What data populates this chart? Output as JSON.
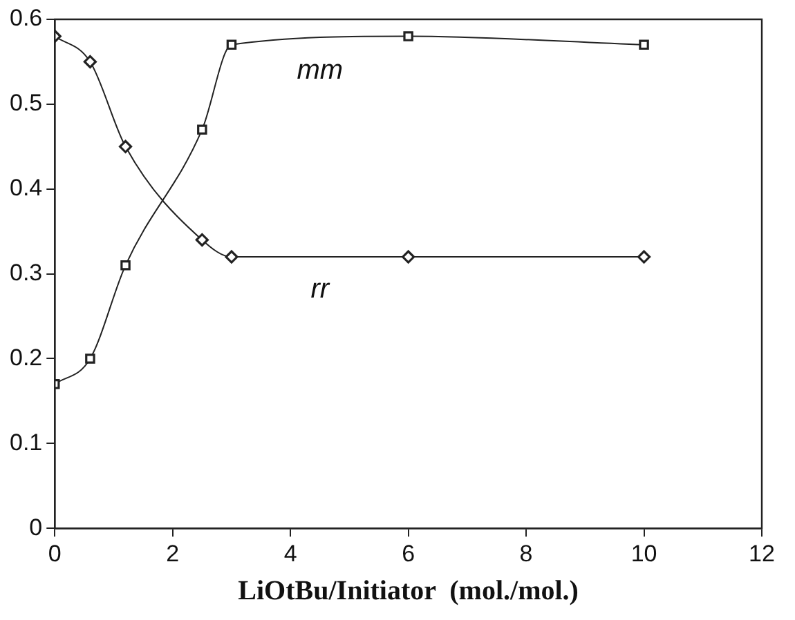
{
  "chart_data": {
    "type": "line",
    "xlabel": "LiOtBu/Initiator  (mol./mol.)",
    "x": [
      0,
      0.6,
      1.2,
      2.5,
      3,
      6,
      10
    ],
    "xlim": [
      0,
      12
    ],
    "xticks": [
      0,
      2,
      4,
      6,
      8,
      10,
      12
    ],
    "ylim": [
      0,
      0.6
    ],
    "yticks": [
      0,
      0.1,
      0.2,
      0.3,
      0.4,
      0.5,
      0.6
    ],
    "grid": false,
    "legend": false,
    "series": [
      {
        "name": "mm",
        "color": "#222222",
        "marker": "square",
        "values": [
          0.17,
          0.2,
          0.31,
          0.47,
          0.57,
          0.58,
          0.57
        ]
      },
      {
        "name": "rr",
        "color": "#222222",
        "marker": "diamond",
        "values": [
          0.58,
          0.55,
          0.45,
          0.34,
          0.32,
          0.32,
          0.32
        ]
      }
    ]
  }
}
